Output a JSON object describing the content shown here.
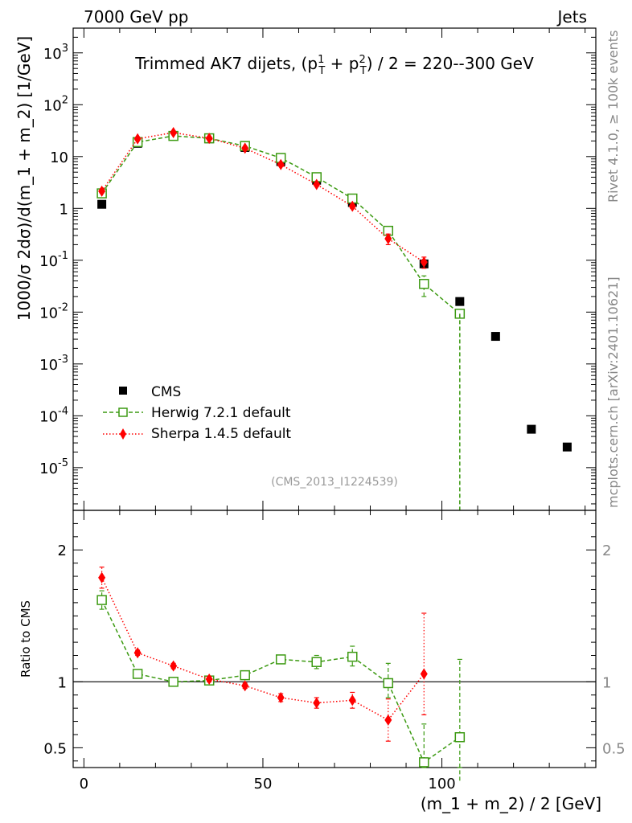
{
  "header": {
    "left": "7000 GeV pp",
    "right": "Jets"
  },
  "side_labels": {
    "rivet": "Rivet 4.1.0, ≥ 100k events",
    "mcplots": "mcplots.cern.ch [arXiv:2401.10621]"
  },
  "colors": {
    "cms": "#000000",
    "herwig": "#3c9a12",
    "sherpa": "#ff0000"
  },
  "chart_data": [
    {
      "type": "scatter",
      "panel": "main",
      "title_main": "Trimmed AK7 dijets, (p",
      "title_sup1": "1",
      "title_sub1": "T",
      "title_mid": " + p",
      "title_sup2": "2",
      "title_sub2": "T",
      "title_end": ") / 2 = 220--300 GeV",
      "ylabel": "1000/σ   2dσ)/d(m_1 + m_2) [1/GeV]",
      "yscale": "log",
      "ylim": [
        1.5e-06,
        3000
      ],
      "xlim": [
        -3,
        143
      ],
      "yticks": [
        "10^{-5}",
        "10^{-4}",
        "10^{-3}",
        "10^{-2}",
        "10^{-1}",
        "1",
        "10",
        "10^{2}",
        "10^{3}"
      ],
      "ytick_values": [
        1e-05,
        0.0001,
        0.001,
        0.01,
        0.1,
        1,
        10,
        100,
        1000
      ],
      "watermark": "(CMS_2013_I1224539)",
      "legend": [
        {
          "label": "CMS",
          "marker": "square"
        },
        {
          "label": "Herwig 7.2.1 default",
          "marker": "open-square"
        },
        {
          "label": "Sherpa 1.4.5 default",
          "marker": "diamond"
        }
      ],
      "legend_position": "bottom-left",
      "series": [
        {
          "name": "CMS",
          "x": [
            5,
            15,
            25,
            35,
            45,
            55,
            65,
            75,
            85,
            95,
            105,
            115,
            125,
            135
          ],
          "y": [
            1.2,
            18,
            25,
            22,
            15,
            8,
            3.5,
            1.3,
            0.37,
            0.085,
            0.016,
            0.0034,
            5.5e-05,
            2.5e-05
          ]
        },
        {
          "name": "Herwig 7.2.1 default",
          "x": [
            5,
            15,
            25,
            35,
            45,
            55,
            65,
            75,
            85,
            95,
            105
          ],
          "y": [
            1.95,
            19,
            25,
            22.5,
            16,
            9.4,
            4,
            1.55,
            0.37,
            0.035,
            0.0093
          ],
          "err_lo": [
            1.8,
            17.5,
            24,
            21.5,
            15.3,
            8.9,
            3.7,
            1.38,
            0.33,
            0.02,
            0.0093
          ],
          "err_hi": [
            2.1,
            20.5,
            26,
            23.5,
            16.7,
            9.9,
            4.3,
            1.72,
            0.41,
            0.05,
            0.0093
          ]
        },
        {
          "name": "Sherpa 1.4.5 default",
          "x": [
            5,
            15,
            25,
            35,
            45,
            55,
            65,
            75,
            85,
            95
          ],
          "y": [
            2.15,
            22,
            29,
            22.5,
            14.5,
            7,
            2.9,
            1.1,
            0.26,
            0.092
          ],
          "err_lo": [
            2.0,
            20.5,
            27.5,
            21.5,
            13.8,
            6.6,
            2.7,
            1.0,
            0.2,
            0.07
          ],
          "err_hi": [
            2.3,
            23.5,
            30.5,
            23.5,
            15.2,
            7.4,
            3.1,
            1.2,
            0.32,
            0.115
          ]
        }
      ]
    },
    {
      "type": "scatter",
      "panel": "ratio",
      "ylabel": "Ratio to CMS",
      "xlabel": "(m_1 + m_2) / 2 [GeV]",
      "xlim": [
        -3,
        143
      ],
      "ylim": [
        0.35,
        2.3
      ],
      "yticks": [
        "0.5",
        "1",
        "2"
      ],
      "ytick_values": [
        0.5,
        1,
        2
      ],
      "xticks": [
        "0",
        "50",
        "100"
      ],
      "xtick_values": [
        0,
        50,
        100
      ],
      "series": [
        {
          "name": "Herwig 7.2.1 default",
          "x": [
            5,
            15,
            25,
            35,
            45,
            55,
            65,
            75,
            85,
            95,
            105
          ],
          "y": [
            1.62,
            1.06,
            1.0,
            1.01,
            1.05,
            1.17,
            1.15,
            1.19,
            0.99,
            0.39,
            0.58
          ],
          "err_lo": [
            1.55,
            1.04,
            0.98,
            0.99,
            1.03,
            1.14,
            1.1,
            1.12,
            0.88,
            0.28,
            0.25
          ],
          "err_hi": [
            1.69,
            1.08,
            1.02,
            1.03,
            1.07,
            1.2,
            1.2,
            1.27,
            1.14,
            0.68,
            1.17
          ]
        },
        {
          "name": "Sherpa 1.4.5 default",
          "x": [
            5,
            15,
            25,
            35,
            45,
            55,
            65,
            75,
            85,
            95
          ],
          "y": [
            1.79,
            1.22,
            1.12,
            1.02,
            0.97,
            0.88,
            0.84,
            0.86,
            0.71,
            1.06
          ],
          "err_lo": [
            1.71,
            1.2,
            1.1,
            1.0,
            0.95,
            0.85,
            0.8,
            0.8,
            0.55,
            0.75
          ],
          "err_hi": [
            1.87,
            1.24,
            1.14,
            1.04,
            0.99,
            0.91,
            0.88,
            0.92,
            0.87,
            1.52
          ]
        }
      ]
    }
  ]
}
